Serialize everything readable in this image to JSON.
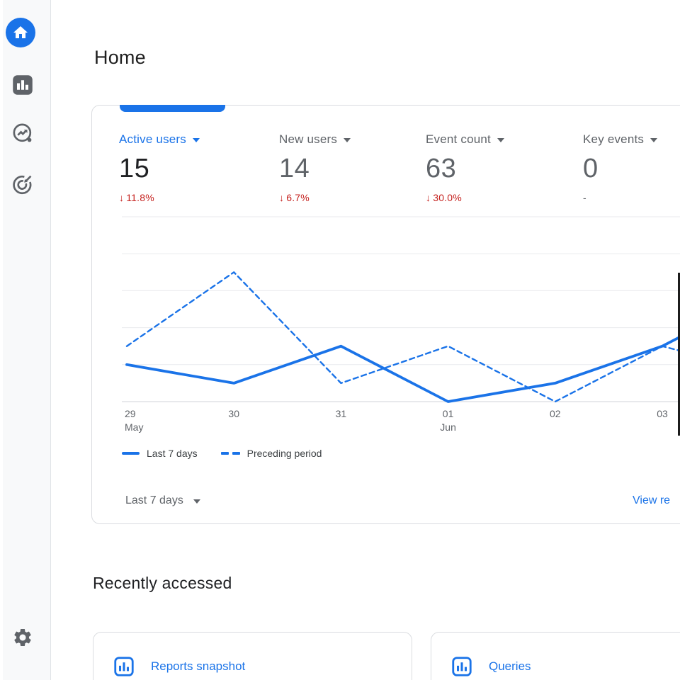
{
  "header": {
    "title": "Home"
  },
  "sidebar": {
    "items": [
      {
        "icon": "home-icon",
        "active": true
      },
      {
        "icon": "reports-icon",
        "active": false
      },
      {
        "icon": "explore-icon",
        "active": false
      },
      {
        "icon": "advertising-icon",
        "active": false
      }
    ],
    "bottom_item": {
      "icon": "admin-gear-icon"
    }
  },
  "overview_card": {
    "metrics": [
      {
        "label": "Active users",
        "value": "15",
        "delta_arrow": "↓",
        "delta": "11.8%",
        "selected": true
      },
      {
        "label": "New users",
        "value": "14",
        "delta_arrow": "↓",
        "delta": "6.7%",
        "selected": false
      },
      {
        "label": "Event count",
        "value": "63",
        "delta_arrow": "↓",
        "delta": "30.0%",
        "selected": false
      },
      {
        "label": "Key events",
        "value": "0",
        "delta_arrow": "",
        "delta": "-",
        "selected": false
      }
    ],
    "legend": [
      {
        "label": "Last 7 days",
        "style": "solid"
      },
      {
        "label": "Preceding period",
        "style": "dashed"
      }
    ],
    "footer": {
      "range_label": "Last 7 days",
      "view_link": "View re"
    }
  },
  "chart_data": {
    "type": "line",
    "title": "",
    "xlabel": "",
    "ylabel": "",
    "categories": [
      "29",
      "30",
      "31",
      "01",
      "02",
      "03"
    ],
    "category_month_labels": {
      "0": "May",
      "3": "Jun"
    },
    "series": [
      {
        "name": "Last 7 days",
        "style": "solid",
        "values": [
          2,
          1,
          3,
          0,
          1,
          3
        ],
        "offscreen_next_value": 6
      },
      {
        "name": "Preceding period",
        "style": "dashed",
        "values": [
          3,
          7,
          1,
          3,
          0,
          3
        ],
        "offscreen_next_value": 1.5
      }
    ],
    "ylim": [
      0,
      10
    ],
    "gridline_step": 2,
    "grid": true,
    "y_axis_labels_visible": false,
    "legend_position": "bottom-left"
  },
  "recently_accessed": {
    "title": "Recently accessed",
    "cards": [
      {
        "icon": "bar-chart-icon",
        "label": "Reports snapshot"
      },
      {
        "icon": "bar-chart-icon",
        "label": "Queries"
      }
    ]
  },
  "colors": {
    "accent_blue": "#1a73e8",
    "negative_red": "#c5221f",
    "text_dark": "#202124",
    "text_gray": "#5f6368",
    "grid_line": "#e8eaed",
    "axis_line": "#dadce0",
    "card_border": "#dadce0",
    "sidebar_bg": "#f8f9fa"
  }
}
